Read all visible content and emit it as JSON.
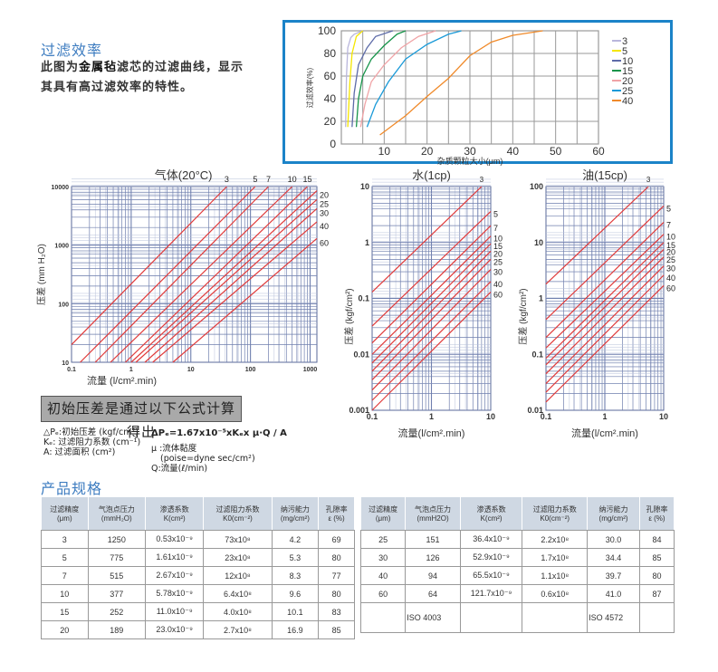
{
  "intro": {
    "title": "过滤效率",
    "line1_pre": "此图为",
    "line1_bold": "金属毡",
    "line1_post": "滤芯的过滤曲线，显示",
    "line2": "其具有高过滤效率的特性。"
  },
  "efficiency_chart": {
    "type": "line",
    "ylabel": "过滤效率(%)",
    "xlabel": "杂质颗粒大小(μm)",
    "xlim": [
      0,
      60
    ],
    "ylim": [
      0,
      100
    ],
    "xticks": [
      10,
      20,
      30,
      40,
      50,
      60
    ],
    "yticks": [
      0,
      20,
      40,
      60,
      80,
      100
    ],
    "grid": true,
    "legend": "right",
    "series": [
      {
        "name": "3",
        "color": "#b9b6dc",
        "points": [
          [
            1,
            15
          ],
          [
            1.2,
            60
          ],
          [
            1.5,
            85
          ],
          [
            2.2,
            94
          ],
          [
            3,
            97
          ],
          [
            5,
            100
          ]
        ]
      },
      {
        "name": "5",
        "color": "#f5e600",
        "points": [
          [
            1.5,
            15
          ],
          [
            2,
            55
          ],
          [
            2.5,
            80
          ],
          [
            3.5,
            95
          ],
          [
            5,
            100
          ]
        ]
      },
      {
        "name": "10",
        "color": "#5d6ba8",
        "points": [
          [
            2.5,
            15
          ],
          [
            3,
            45
          ],
          [
            4,
            70
          ],
          [
            6,
            85
          ],
          [
            8,
            95
          ],
          [
            12,
            100
          ]
        ]
      },
      {
        "name": "15",
        "color": "#17944a",
        "points": [
          [
            3.5,
            15
          ],
          [
            4,
            40
          ],
          [
            5,
            60
          ],
          [
            7,
            75
          ],
          [
            10,
            87
          ],
          [
            13,
            97
          ],
          [
            15,
            100
          ]
        ]
      },
      {
        "name": "20",
        "color": "#f0a3a6",
        "points": [
          [
            4.5,
            15
          ],
          [
            5.5,
            35
          ],
          [
            7,
            55
          ],
          [
            10,
            70
          ],
          [
            14,
            85
          ],
          [
            18,
            95
          ],
          [
            22,
            100
          ]
        ]
      },
      {
        "name": "25",
        "color": "#1a9ad8",
        "points": [
          [
            6,
            15
          ],
          [
            8,
            35
          ],
          [
            11,
            55
          ],
          [
            15,
            75
          ],
          [
            20,
            88
          ],
          [
            25,
            97
          ],
          [
            28,
            100
          ]
        ]
      },
      {
        "name": "40",
        "color": "#f08a2a",
        "points": [
          [
            9,
            8
          ],
          [
            15,
            25
          ],
          [
            20,
            42
          ],
          [
            25,
            58
          ],
          [
            30,
            78
          ],
          [
            35,
            90
          ],
          [
            40,
            96
          ],
          [
            47,
            100
          ]
        ]
      }
    ]
  },
  "chart_data": [
    {
      "type": "line",
      "title": "气体(20°C)",
      "ylabel": "压差 (mm H₂O)",
      "xlabel": "流量 (l/cm².min)",
      "xscale": "log",
      "yscale": "log",
      "xlim": [
        0.1,
        1300
      ],
      "ylim": [
        10,
        10000
      ],
      "xticks": [
        "0.1",
        "1",
        "10",
        "100",
        "1000"
      ],
      "yticks": [
        "10",
        "100",
        "1000",
        "10000"
      ],
      "grid": true,
      "series": [
        {
          "name": "3",
          "points": [
            [
              0.1,
              20
            ],
            [
              40,
              10000
            ]
          ]
        },
        {
          "name": "5",
          "points": [
            [
              0.14,
              10
            ],
            [
              120,
              10000
            ]
          ]
        },
        {
          "name": "7",
          "points": [
            [
              0.25,
              10
            ],
            [
              200,
              10000
            ]
          ]
        },
        {
          "name": "10",
          "points": [
            [
              0.45,
              10
            ],
            [
              500,
              10000
            ]
          ]
        },
        {
          "name": "15",
          "points": [
            [
              0.8,
              10
            ],
            [
              900,
              10000
            ]
          ]
        },
        {
          "name": "20",
          "points": [
            [
              1.0,
              10
            ],
            [
              1300,
              8500
            ]
          ]
        },
        {
          "name": "25",
          "points": [
            [
              1.2,
              10
            ],
            [
              1300,
              6000
            ]
          ]
        },
        {
          "name": "30",
          "points": [
            [
              1.7,
              10
            ],
            [
              1300,
              4200
            ]
          ]
        },
        {
          "name": "40",
          "points": [
            [
              2.3,
              10
            ],
            [
              1300,
              2500
            ]
          ]
        },
        {
          "name": "60",
          "points": [
            [
              5,
              10
            ],
            [
              1300,
              1300
            ]
          ]
        }
      ]
    },
    {
      "type": "line",
      "title": "水(1cp)",
      "ylabel": "压差 (kgf/cm²)",
      "xlabel": "流量(l/cm².min)",
      "xscale": "log",
      "yscale": "log",
      "xlim": [
        0.1,
        10
      ],
      "ylim": [
        0.001,
        10
      ],
      "xticks": [
        "0.1",
        "1",
        "10"
      ],
      "yticks": [
        "0.001",
        "0.01",
        "0.1",
        "1",
        "10"
      ],
      "grid": true,
      "series": [
        {
          "name": "3",
          "points": [
            [
              0.1,
              0.13
            ],
            [
              7,
              10
            ]
          ]
        },
        {
          "name": "5",
          "points": [
            [
              0.1,
              0.032
            ],
            [
              10,
              3.6
            ]
          ]
        },
        {
          "name": "7",
          "points": [
            [
              0.1,
              0.016
            ],
            [
              10,
              2
            ]
          ]
        },
        {
          "name": "10",
          "points": [
            [
              0.1,
              0.01
            ],
            [
              10,
              1.3
            ]
          ]
        },
        {
          "name": "15",
          "points": [
            [
              0.1,
              0.007
            ],
            [
              10,
              0.95
            ]
          ]
        },
        {
          "name": "20",
          "points": [
            [
              0.1,
              0.005
            ],
            [
              10,
              0.7
            ]
          ]
        },
        {
          "name": "25",
          "points": [
            [
              0.1,
              0.0035
            ],
            [
              10,
              0.5
            ]
          ]
        },
        {
          "name": "30",
          "points": [
            [
              0.1,
              0.0023
            ],
            [
              10,
              0.33
            ]
          ]
        },
        {
          "name": "40",
          "points": [
            [
              0.1,
              0.0015
            ],
            [
              10,
              0.2
            ]
          ]
        },
        {
          "name": "60",
          "points": [
            [
              0.1,
              0.001
            ],
            [
              10,
              0.13
            ]
          ]
        }
      ]
    },
    {
      "type": "line",
      "title": "油(15cp)",
      "ylabel": "压差 (kgf/cm²)",
      "xlabel": "流量(l/cm².min)",
      "xscale": "log",
      "yscale": "log",
      "xlim": [
        0.1,
        10
      ],
      "ylim": [
        0.01,
        100
      ],
      "xticks": [
        "0.1",
        "1",
        "10"
      ],
      "yticks": [
        "0.01",
        "0.1",
        "1",
        "10",
        "100"
      ],
      "grid": true,
      "series": [
        {
          "name": "3",
          "points": [
            [
              0.1,
              1.8
            ],
            [
              5.5,
              100
            ]
          ]
        },
        {
          "name": "5",
          "points": [
            [
              0.1,
              0.42
            ],
            [
              10,
              45
            ]
          ]
        },
        {
          "name": "7",
          "points": [
            [
              0.1,
              0.2
            ],
            [
              10,
              23
            ]
          ]
        },
        {
          "name": "10",
          "points": [
            [
              0.1,
              0.13
            ],
            [
              10,
              14
            ]
          ]
        },
        {
          "name": "15",
          "points": [
            [
              0.1,
              0.085
            ],
            [
              10,
              10
            ]
          ]
        },
        {
          "name": "20",
          "points": [
            [
              0.1,
              0.065
            ],
            [
              10,
              7.5
            ]
          ]
        },
        {
          "name": "25",
          "points": [
            [
              0.1,
              0.045
            ],
            [
              10,
              5.5
            ]
          ]
        },
        {
          "name": "30",
          "points": [
            [
              0.1,
              0.03
            ],
            [
              10,
              3.8
            ]
          ]
        },
        {
          "name": "40",
          "points": [
            [
              0.1,
              0.021
            ],
            [
              10,
              2.6
            ]
          ]
        },
        {
          "name": "60",
          "points": [
            [
              0.1,
              0.014
            ],
            [
              10,
              1.7
            ]
          ]
        }
      ]
    }
  ],
  "formula": {
    "box": "初始压差是通过以下公式计算得出",
    "left": [
      "△Pₑ:初始压差 (kgf/cm²)",
      "Kₑ:  过滤阻力系数 (cm⁻¹)",
      "A:   过滤面积 (cm²)"
    ],
    "eq": "ΔPₑ=1.67x10⁻⁵xKₑx μ·Q / A",
    "right": [
      "μ :流体黏度",
      "(poise=dyne sec/cm²)",
      "Q:流量(ℓ/min)"
    ]
  },
  "specs": {
    "title": "产品规格",
    "headers": [
      [
        "过滤精度",
        "(μm)"
      ],
      [
        "气泡点压力",
        "(mmH₂O)"
      ],
      [
        "渗透系数",
        "K(cm²)"
      ],
      [
        "过滤阻力系数",
        "K0(cm⁻²)"
      ],
      [
        "纳污能力",
        "(mg/cm²)"
      ],
      [
        "孔隙率",
        "ε (%)"
      ]
    ],
    "headers_right": [
      [
        "过滤精度",
        "(μm)"
      ],
      [
        "气泡点压力",
        "(mmH2O)"
      ],
      [
        "渗透系数",
        "K(cm²)"
      ],
      [
        "过滤阻力系数",
        "K0(cm⁻²)"
      ],
      [
        "纳污能力",
        "(mg/cm²)"
      ],
      [
        "孔隙率",
        "ε (%)"
      ]
    ],
    "left_rows": [
      [
        "3",
        "1250",
        "0.53x10⁻⁹",
        "73x10⁸",
        "4.2",
        "69"
      ],
      [
        "5",
        "775",
        "1.61x10⁻⁹",
        "23x10⁸",
        "5.3",
        "80"
      ],
      [
        "7",
        "515",
        "2.67x10⁻⁹",
        "12x10⁸",
        "8.3",
        "77"
      ],
      [
        "10",
        "377",
        "5.78x10⁻⁹",
        "6.4x10⁸",
        "9.6",
        "80"
      ],
      [
        "15",
        "252",
        "11.0x10⁻⁹",
        "4.0x10⁸",
        "10.1",
        "83"
      ],
      [
        "20",
        "189",
        "23.0x10⁻⁹",
        "2.7x10⁸",
        "16.9",
        "85"
      ]
    ],
    "right_rows": [
      [
        "25",
        "151",
        "36.4x10⁻⁹",
        "2.2x10⁸",
        "30.0",
        "84"
      ],
      [
        "30",
        "126",
        "52.9x10⁻⁹",
        "1.7x10⁸",
        "34.4",
        "85"
      ],
      [
        "40",
        "94",
        "65.5x10⁻⁹",
        "1.1x10⁸",
        "39.7",
        "80"
      ],
      [
        "60",
        "64",
        "121.7x10⁻⁹",
        "0.6x10⁸",
        "41.0",
        "87"
      ],
      [
        "",
        "ISO 4003",
        "",
        "",
        "ISO 4572",
        ""
      ]
    ]
  }
}
